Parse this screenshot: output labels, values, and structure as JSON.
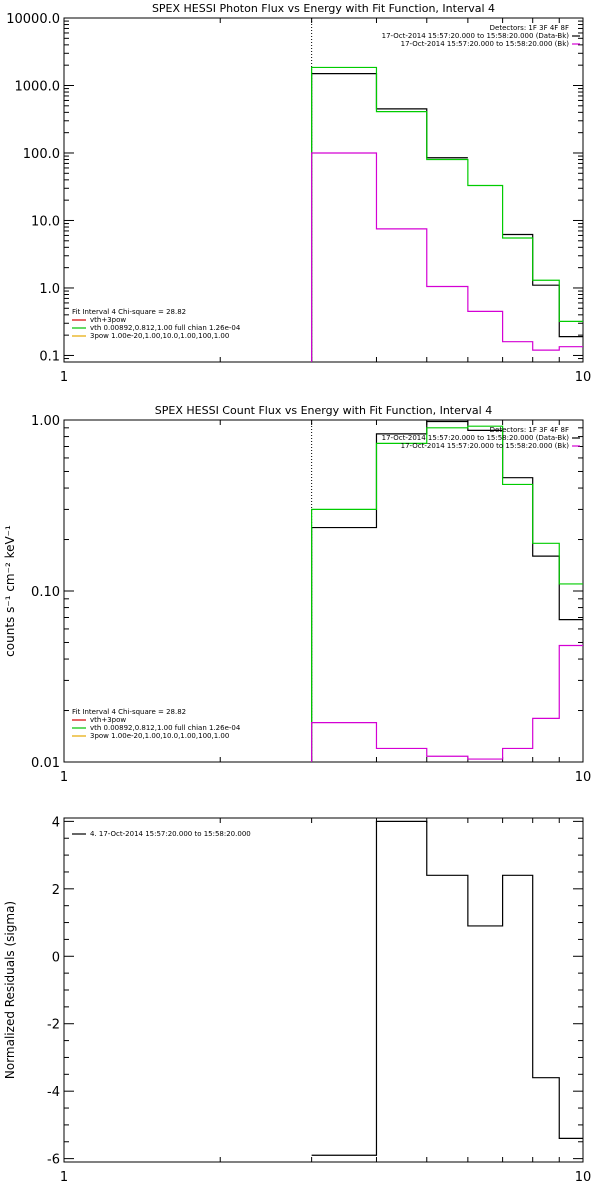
{
  "chart_data": [
    {
      "type": "line",
      "title": "SPEX HESSI Photon Flux vs Energy with Fit Function, Interval 4",
      "ylabel": "",
      "xlabel": "",
      "xscale": "log",
      "yscale": "log",
      "xlim": [
        1,
        10
      ],
      "ylim": [
        0.08,
        10000
      ],
      "x_ticks": [
        {
          "v": 1,
          "label": "1"
        },
        {
          "v": 10,
          "label": "10"
        }
      ],
      "y_ticks": [
        {
          "v": 0.1,
          "label": "0.1"
        },
        {
          "v": 1,
          "label": "1.0"
        },
        {
          "v": 10,
          "label": "10.0"
        },
        {
          "v": 100,
          "label": "100.0"
        },
        {
          "v": 1000,
          "label": "1000.0"
        },
        {
          "v": 10000,
          "label": "10000.0"
        }
      ],
      "bin_edges": [
        3,
        4,
        5,
        6,
        7,
        8,
        9,
        10
      ],
      "vline_x": 3,
      "legend_right": [
        {
          "text": "Detectors: 1F 3F 4F 8F",
          "color": ""
        },
        {
          "text": "17-Oct-2014 15:57:20.000 to 15:58:20.000 (Data-Bk)",
          "color": "#000000"
        },
        {
          "text": "17-Oct-2014 15:57:20.000 to 15:58:20.000 (Bk)",
          "color": "#d400d4"
        }
      ],
      "legend_left": [
        {
          "text": "Fit Interval 4   Chi-square = 28.82",
          "color": ""
        },
        {
          "text": "vth+3pow",
          "color": "#d40000"
        },
        {
          "text": "vth 0.00892,0.812,1.00   full chian 1.26e-04",
          "color": "#00c000"
        },
        {
          "text": "3pow 1.00e-20,1.00,10.0,1.00,100,1.00",
          "color": "#e6a800"
        }
      ],
      "series": [
        {
          "color": "#000000",
          "values": [
            1500,
            450,
            85,
            null,
            6.2,
            1.1,
            0.19
          ]
        },
        {
          "color": "#00cc00",
          "values": [
            1850,
            410,
            80,
            33,
            5.5,
            1.3,
            0.32
          ]
        },
        {
          "color": "#d400d4",
          "values": [
            100,
            7.5,
            1.05,
            0.45,
            0.16,
            0.12,
            0.135
          ]
        }
      ]
    },
    {
      "type": "line",
      "title": "SPEX HESSI Count Flux vs Energy with Fit Function, Interval 4",
      "ylabel": "counts s⁻¹ cm⁻² keV⁻¹",
      "xlabel": "",
      "xscale": "log",
      "yscale": "log",
      "xlim": [
        1,
        10
      ],
      "ylim": [
        0.01,
        1.0
      ],
      "x_ticks": [
        {
          "v": 1,
          "label": "1"
        },
        {
          "v": 10,
          "label": "10"
        }
      ],
      "y_ticks": [
        {
          "v": 0.01,
          "label": "0.01"
        },
        {
          "v": 0.1,
          "label": "0.10"
        },
        {
          "v": 1,
          "label": "1.00"
        }
      ],
      "bin_edges": [
        3,
        4,
        5,
        6,
        7,
        8,
        9,
        10
      ],
      "vline_x": 3,
      "legend_right": [
        {
          "text": "Detectors: 1F 3F 4F 8F",
          "color": ""
        },
        {
          "text": "17-Oct-2014 15:57:20.000 to 15:58:20.000 (Data-Bk)",
          "color": "#000000"
        },
        {
          "text": "17-Oct-2014 15:57:20.000 to 15:58:20.000 (Bk)",
          "color": "#d400d4"
        }
      ],
      "legend_left": [
        {
          "text": "Fit Interval 4   Chi-square = 28.82",
          "color": ""
        },
        {
          "text": "vth+3pow",
          "color": "#d40000"
        },
        {
          "text": "vth 0.00892,0.812,1.00   full chian 1.26e-04",
          "color": "#00c000"
        },
        {
          "text": "3pow 1.00e-20,1.00,10.0,1.00,100,1.00",
          "color": "#e6a800"
        }
      ],
      "series": [
        {
          "color": "#000000",
          "values": [
            0.235,
            0.83,
            0.98,
            0.87,
            0.46,
            0.16,
            0.068
          ]
        },
        {
          "color": "#00cc00",
          "values": [
            0.3,
            0.73,
            0.9,
            0.92,
            0.42,
            0.19,
            0.11
          ]
        },
        {
          "color": "#d400d4",
          "values": [
            0.017,
            0.012,
            0.0108,
            0.0104,
            0.012,
            0.018,
            0.048
          ]
        }
      ]
    },
    {
      "type": "line",
      "title": "",
      "ylabel": "Normalized Residuals (sigma)",
      "xlabel": "",
      "xscale": "log",
      "yscale": "linear",
      "xlim": [
        1,
        10
      ],
      "ylim": [
        -6.1,
        4.1
      ],
      "x_ticks": [
        {
          "v": 1,
          "label": "1"
        },
        {
          "v": 10,
          "label": "10"
        }
      ],
      "y_ticks": [
        {
          "v": -6,
          "label": "-6"
        },
        {
          "v": -4,
          "label": "-4"
        },
        {
          "v": -2,
          "label": "-2"
        },
        {
          "v": 0,
          "label": "0"
        },
        {
          "v": 2,
          "label": "2"
        },
        {
          "v": 4,
          "label": "4"
        }
      ],
      "bin_edges": [
        3,
        4,
        5,
        6,
        7,
        8,
        9,
        10
      ],
      "vline_x": null,
      "legend_right": [],
      "legend_left": [
        {
          "text": "4. 17-Oct-2014 15:57:20.000 to 15:58:20.000",
          "color": "#000000"
        }
      ],
      "series": [
        {
          "color": "#000000",
          "values": [
            -5.9,
            4.0,
            2.4,
            0.9,
            2.4,
            -3.6,
            -5.4
          ]
        }
      ]
    }
  ]
}
